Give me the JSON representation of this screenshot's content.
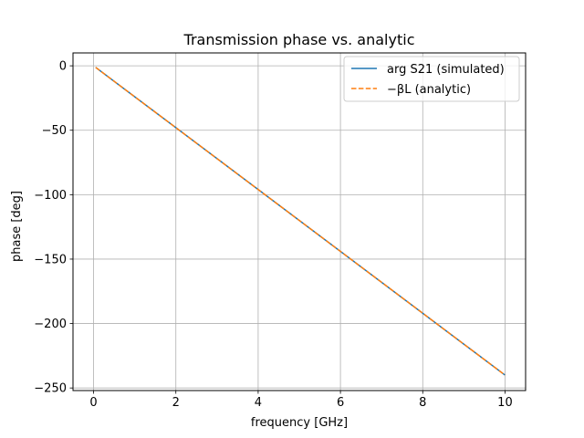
{
  "chart_data": {
    "type": "line",
    "title": "Transmission phase vs. analytic",
    "xlabel": "frequency [GHz]",
    "ylabel": "phase [deg]",
    "xlim": [
      -0.5,
      10.5
    ],
    "ylim": [
      -252,
      10
    ],
    "xticks": [
      0,
      2,
      4,
      6,
      8,
      10
    ],
    "xtick_labels": [
      "0",
      "2",
      "4",
      "6",
      "8",
      "10"
    ],
    "yticks": [
      0,
      -50,
      -100,
      -150,
      -200,
      -250
    ],
    "ytick_labels": [
      "0",
      "−50",
      "−100",
      "−150",
      "−200",
      "−250"
    ],
    "grid": true,
    "legend_position": "top-right",
    "series": [
      {
        "name": "arg S21 (simulated)",
        "color": "#1f77b4",
        "style": "solid",
        "x": [
          0.05,
          10.0
        ],
        "y": [
          -1.2,
          -240.0
        ]
      },
      {
        "name": "−βL (analytic)",
        "color": "#ff7f0e",
        "style": "dashed",
        "x": [
          0.05,
          10.0
        ],
        "y": [
          -1.2,
          -240.0
        ]
      }
    ]
  }
}
